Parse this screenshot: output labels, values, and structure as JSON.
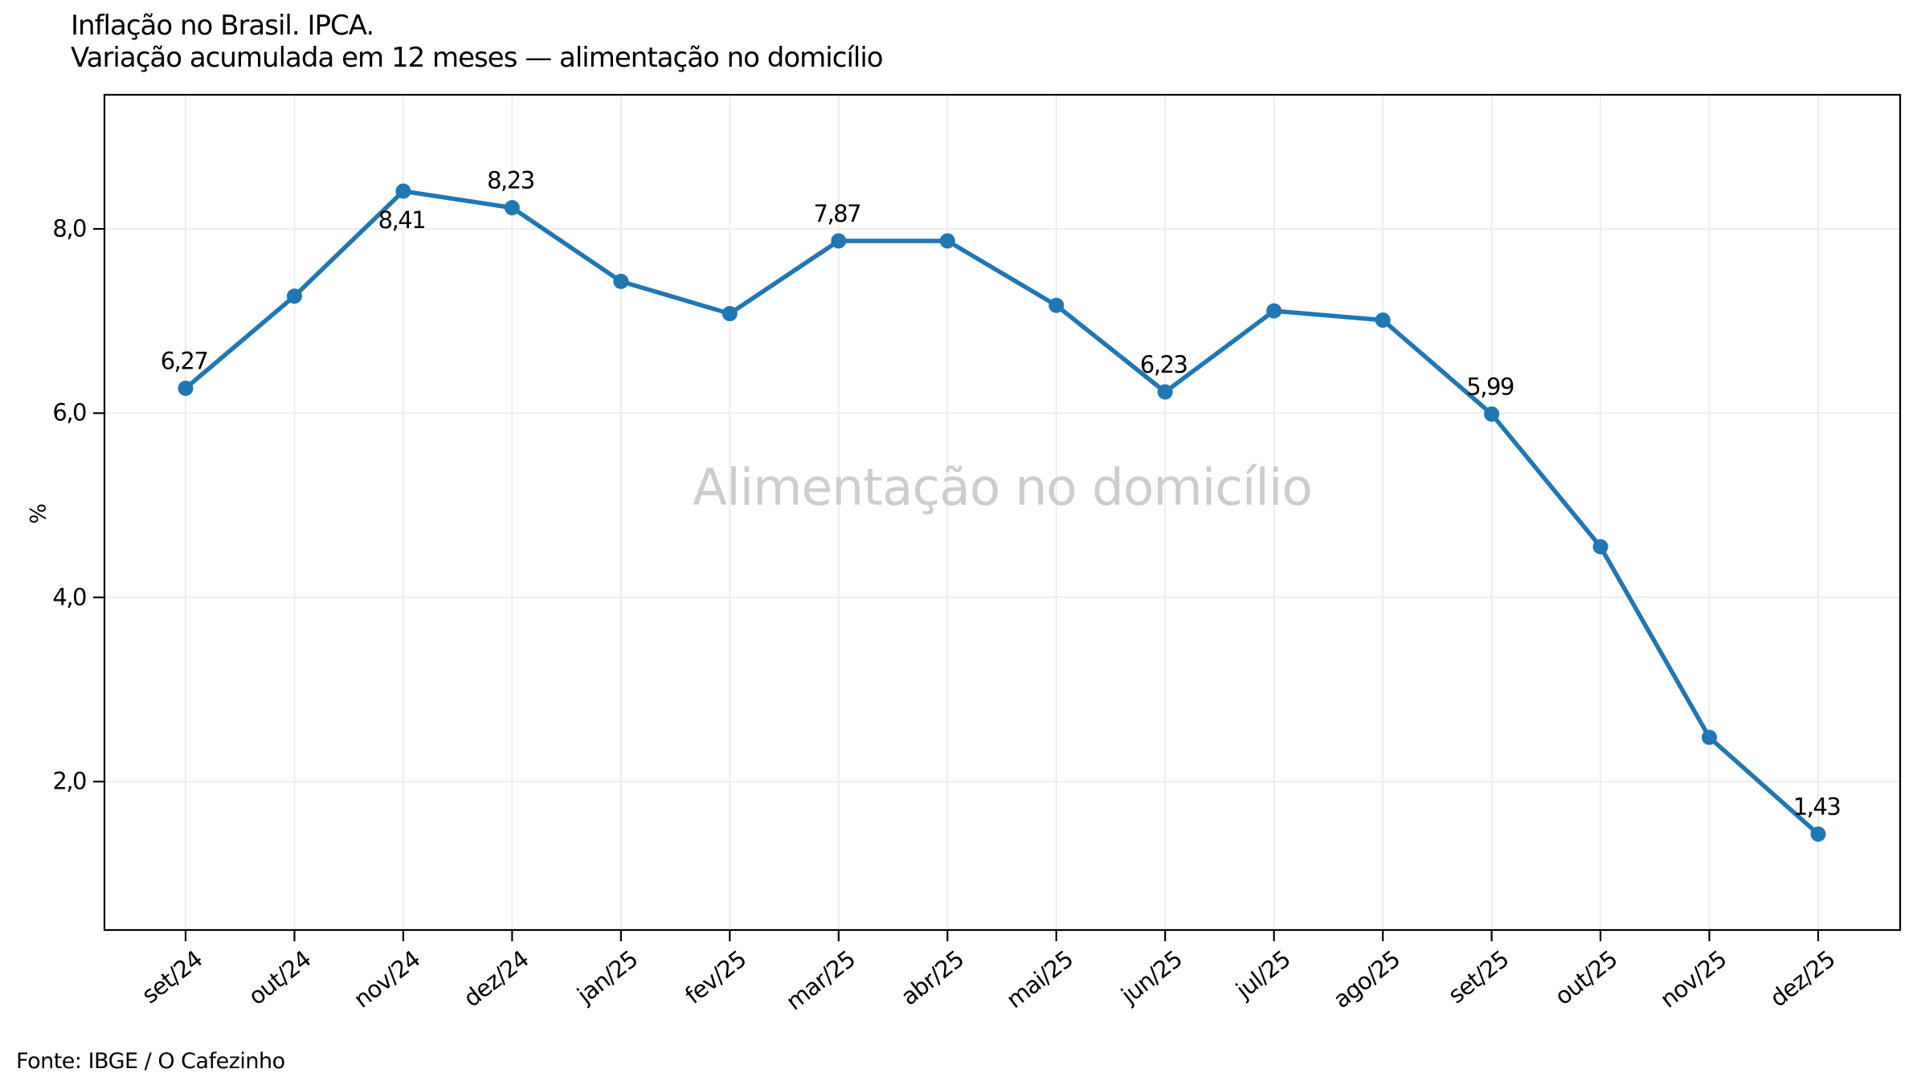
{
  "title": {
    "line1": "Inflação no Brasil. IPCA.",
    "line2": "Variação acumulada em 12 meses — alimentação no domicílio"
  },
  "watermark": "Alimentação no domicílio",
  "source": "Fonte: IBGE / O Cafezinho",
  "colors": {
    "line": "#1f77b4",
    "marker": "#1f77b4",
    "grid": "#ededed",
    "spine": "#000000",
    "annotation": "#000000",
    "watermark": "#cdcdcd"
  },
  "chart_data": {
    "type": "line",
    "title": "Inflação no Brasil. IPCA. Variação acumulada em 12 meses — alimentação no domicílio",
    "xlabel": "",
    "ylabel": "%",
    "categories": [
      "set/24",
      "out/24",
      "nov/24",
      "dez/24",
      "jan/25",
      "fev/25",
      "mar/25",
      "abr/25",
      "mai/25",
      "jun/25",
      "jul/25",
      "ago/25",
      "set/25",
      "out/25",
      "nov/25",
      "dez/25"
    ],
    "values": [
      6.27,
      7.27,
      8.41,
      8.23,
      7.43,
      7.08,
      7.87,
      7.87,
      7.17,
      6.23,
      7.11,
      7.01,
      5.99,
      4.55,
      2.48,
      1.43
    ],
    "yticks": [
      2,
      4,
      6,
      8
    ],
    "ytick_labels": [
      "2,0",
      "4,0",
      "6,0",
      "8,0"
    ],
    "ylim": [
      0.38,
      9.465
    ],
    "grid": true,
    "legend": "none",
    "annotations": [
      {
        "category": "set/24",
        "label": "6,27",
        "placement": "above"
      },
      {
        "category": "nov/24",
        "label": "8,41",
        "placement": "below"
      },
      {
        "category": "dez/24",
        "label": "8,23",
        "placement": "above"
      },
      {
        "category": "mar/25",
        "label": "7,87",
        "placement": "above"
      },
      {
        "category": "jun/25",
        "label": "6,23",
        "placement": "above"
      },
      {
        "category": "set/25",
        "label": "5,99",
        "placement": "above"
      },
      {
        "category": "dez/25",
        "label": "1,43",
        "placement": "above"
      }
    ]
  }
}
